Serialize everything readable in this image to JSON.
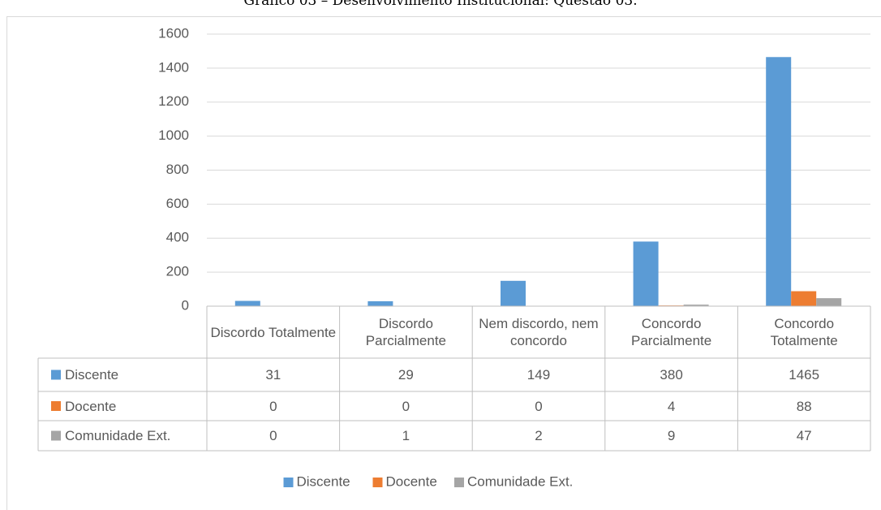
{
  "chart_data": {
    "type": "bar",
    "title": "Gráfico 03 – Desenvolvimento Institucional: Questão 03.",
    "categories": [
      "Discordo Totalmente",
      "Discordo Parcialmente",
      "Nem discordo, nem concordo",
      "Concordo Parcialmente",
      "Concordo Totalmente"
    ],
    "series": [
      {
        "name": "Discente",
        "color": "#5b9bd5",
        "values": [
          31,
          29,
          149,
          380,
          1465
        ]
      },
      {
        "name": "Docente",
        "color": "#ed7d31",
        "values": [
          0,
          0,
          0,
          4,
          88
        ]
      },
      {
        "name": "Comunidade Ext.",
        "color": "#a5a5a5",
        "values": [
          0,
          1,
          2,
          9,
          47
        ]
      }
    ],
    "ylim": [
      0,
      1600
    ],
    "yticks": [
      0,
      200,
      400,
      600,
      800,
      1000,
      1200,
      1400,
      1600
    ],
    "grid": true,
    "legend": "bottom",
    "data_table": true
  }
}
